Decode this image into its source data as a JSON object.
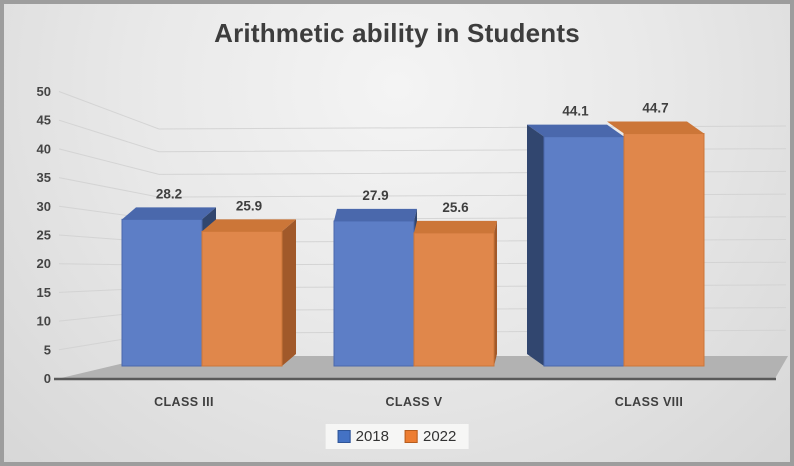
{
  "chart_data": {
    "type": "bar",
    "subtype": "3d-clustered-column",
    "title": "Arithmetic ability in Students",
    "categories": [
      "CLASS III",
      "CLASS V",
      "CLASS VIII"
    ],
    "series": [
      {
        "name": "2018",
        "values": [
          28.2,
          27.9,
          44.1
        ],
        "colors": {
          "front": "#5d7ec6",
          "top": "#4a68ac",
          "side": "#31466f",
          "swatch": "#4472c4",
          "swatch_border": "#2f5597"
        }
      },
      {
        "name": "2022",
        "values": [
          25.9,
          25.6,
          44.7
        ],
        "colors": {
          "front": "#e0874b",
          "top": "#cc7638",
          "side": "#a1592a",
          "swatch": "#ed7d31",
          "swatch_border": "#b65d1d"
        }
      }
    ],
    "data_label_strings": [
      "28.2",
      "25.9",
      "27.9",
      "25.6",
      "44.1",
      "44.7"
    ],
    "ylim": [
      0,
      50
    ],
    "ytick_step": 5,
    "y_ticks": [
      0,
      5,
      10,
      15,
      20,
      25,
      30,
      35,
      40,
      45,
      50
    ],
    "grid": true,
    "legend_position": "bottom",
    "data_labels": true,
    "text_color": "#3f3f3f",
    "gridline_color": "#d2d2d2",
    "floor_color": "#b2b2b2",
    "axis_line_color": "#595959"
  }
}
